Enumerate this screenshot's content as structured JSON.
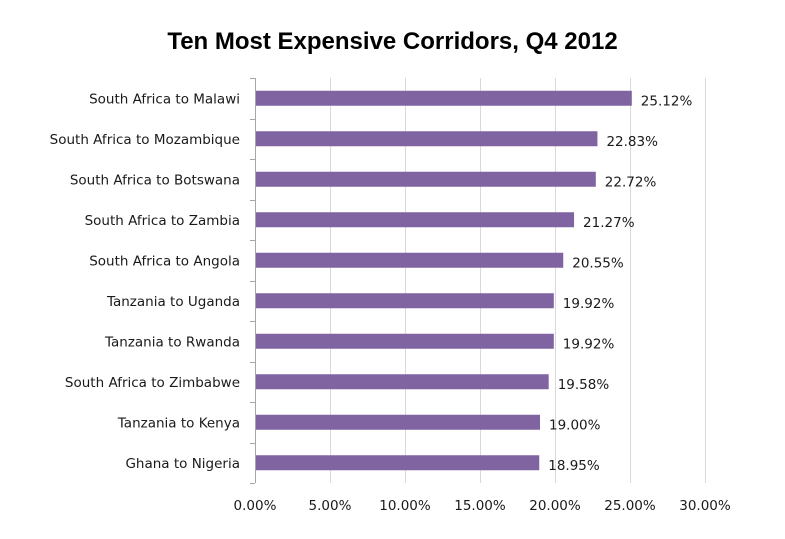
{
  "chart_data": {
    "type": "bar",
    "orientation": "horizontal",
    "title": "Ten Most Expensive Corridors, Q4 2012",
    "xlabel": "",
    "ylabel": "",
    "categories": [
      "South Africa to Malawi",
      "South Africa to Mozambique",
      "South Africa to Botswana",
      "South Africa to Zambia",
      "South Africa to Angola",
      "Tanzania to Uganda",
      "Tanzania to Rwanda",
      "South Africa to Zimbabwe",
      "Tanzania to Kenya",
      "Ghana to Nigeria"
    ],
    "values": [
      25.12,
      22.83,
      22.72,
      21.27,
      20.55,
      19.92,
      19.92,
      19.58,
      19.0,
      18.95
    ],
    "data_labels": [
      "25.12%",
      "22.83%",
      "22.72%",
      "21.27%",
      "20.55%",
      "19.92%",
      "19.92%",
      "19.58%",
      "19.00%",
      "18.95%"
    ],
    "xlim": [
      0,
      30
    ],
    "x_ticks": [
      0,
      5,
      10,
      15,
      20,
      25,
      30
    ],
    "x_tick_labels": [
      "0.00%",
      "5.00%",
      "10.00%",
      "15.00%",
      "20.00%",
      "25.00%",
      "30.00%"
    ],
    "grid": "vertical",
    "legend": "none",
    "bar_color": "#8064A2",
    "grid_color": "#d9d9d9"
  }
}
